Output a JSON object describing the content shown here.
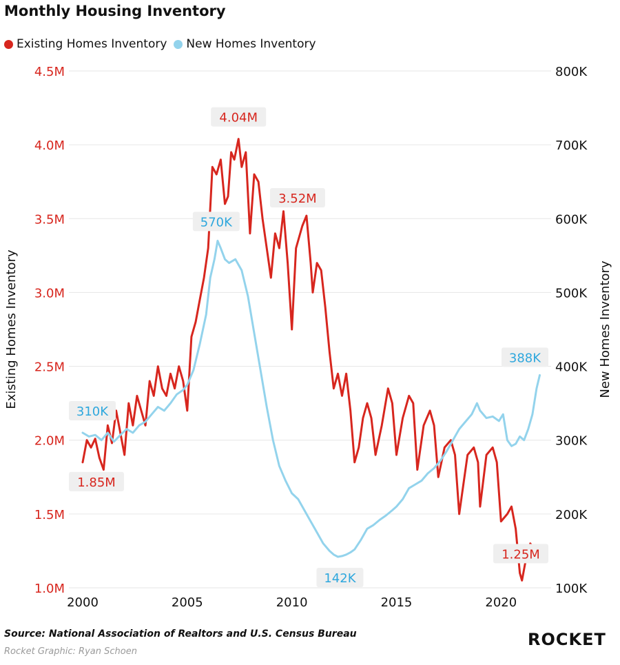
{
  "title": "Monthly Housing Inventory",
  "legend": {
    "existing_label": "Existing Homes Inventory",
    "new_label": "New Homes Inventory"
  },
  "colors": {
    "existing": "#d7261e",
    "new": "#93d3ec",
    "grid": "#e6e6e6",
    "callout_bg": "#efefef"
  },
  "source": "Source: National Association of Realtors and U.S. Census Bureau",
  "credit": "Rocket Graphic: Ryan Schoen",
  "logo": "ROCKET",
  "chart_data": {
    "type": "line",
    "title": "Monthly Housing Inventory",
    "x_ticks": [
      "2000",
      "2005",
      "2010",
      "2015",
      "2020"
    ],
    "x_tick_values": [
      2000,
      2005,
      2010,
      2015,
      2020
    ],
    "xlim": [
      2000,
      2021.9
    ],
    "left_axis": {
      "label": "Existing Homes Inventory",
      "ylim": [
        1.0,
        4.5
      ],
      "tick_values": [
        1.0,
        1.5,
        2.0,
        2.5,
        3.0,
        3.5,
        4.0,
        4.5
      ],
      "tick_labels": [
        "1.0M",
        "1.5M",
        "2.0M",
        "2.5M",
        "3.0M",
        "3.5M",
        "4.0M",
        "4.5M"
      ]
    },
    "right_axis": {
      "label": "New Homes Inventory",
      "ylim": [
        100,
        800
      ],
      "tick_values": [
        100,
        200,
        300,
        400,
        500,
        600,
        700,
        800
      ],
      "tick_labels": [
        "100K",
        "200K",
        "300K",
        "400K",
        "500K",
        "600K",
        "700K",
        "800K"
      ]
    },
    "grid": true,
    "legend_position": "top-left",
    "series": [
      {
        "name": "Existing Homes Inventory",
        "axis": "left",
        "x": [
          2000.0,
          2000.2,
          2000.4,
          2000.6,
          2000.8,
          2001.0,
          2001.2,
          2001.4,
          2001.6,
          2001.8,
          2002.0,
          2002.2,
          2002.4,
          2002.6,
          2002.8,
          2003.0,
          2003.2,
          2003.4,
          2003.6,
          2003.8,
          2004.0,
          2004.2,
          2004.4,
          2004.6,
          2004.8,
          2005.0,
          2005.2,
          2005.4,
          2005.6,
          2005.8,
          2006.0,
          2006.2,
          2006.4,
          2006.6,
          2006.8,
          2006.95,
          2007.1,
          2007.25,
          2007.45,
          2007.6,
          2007.8,
          2008.0,
          2008.2,
          2008.4,
          2008.6,
          2008.8,
          2009.0,
          2009.2,
          2009.4,
          2009.6,
          2009.8,
          2010.0,
          2010.2,
          2010.5,
          2010.7,
          2010.9,
          2011.0,
          2011.2,
          2011.4,
          2011.6,
          2011.8,
          2012.0,
          2012.2,
          2012.4,
          2012.6,
          2012.8,
          2013.0,
          2013.2,
          2013.4,
          2013.6,
          2013.8,
          2014.0,
          2014.3,
          2014.6,
          2014.8,
          2015.0,
          2015.3,
          2015.6,
          2015.8,
          2016.0,
          2016.3,
          2016.6,
          2016.8,
          2017.0,
          2017.3,
          2017.6,
          2017.8,
          2018.0,
          2018.4,
          2018.7,
          2018.9,
          2019.0,
          2019.3,
          2019.6,
          2019.8,
          2020.0,
          2020.3,
          2020.5,
          2020.7,
          2020.9,
          2021.0,
          2021.2,
          2021.4,
          2021.6,
          2021.8
        ],
        "values": [
          1.85,
          2.0,
          1.95,
          2.01,
          1.88,
          1.8,
          2.1,
          1.98,
          2.2,
          2.05,
          1.9,
          2.25,
          2.1,
          2.3,
          2.2,
          2.1,
          2.4,
          2.3,
          2.5,
          2.35,
          2.3,
          2.45,
          2.35,
          2.5,
          2.4,
          2.2,
          2.7,
          2.8,
          2.95,
          3.1,
          3.3,
          3.85,
          3.8,
          3.9,
          3.6,
          3.65,
          3.95,
          3.9,
          4.04,
          3.85,
          3.95,
          3.4,
          3.8,
          3.75,
          3.5,
          3.3,
          3.1,
          3.4,
          3.3,
          3.55,
          3.2,
          2.75,
          3.3,
          3.45,
          3.52,
          3.2,
          3.0,
          3.2,
          3.15,
          2.9,
          2.6,
          2.35,
          2.45,
          2.3,
          2.45,
          2.2,
          1.85,
          1.95,
          2.15,
          2.25,
          2.15,
          1.9,
          2.1,
          2.35,
          2.25,
          1.9,
          2.15,
          2.3,
          2.25,
          1.8,
          2.1,
          2.2,
          2.1,
          1.75,
          1.95,
          2.0,
          1.9,
          1.5,
          1.9,
          1.95,
          1.85,
          1.55,
          1.9,
          1.95,
          1.85,
          1.45,
          1.5,
          1.55,
          1.4,
          1.1,
          1.05,
          1.2,
          1.3,
          1.26,
          1.25
        ]
      },
      {
        "name": "New Homes Inventory",
        "axis": "right",
        "x": [
          2000.0,
          2000.3,
          2000.6,
          2000.9,
          2001.2,
          2001.5,
          2001.8,
          2002.1,
          2002.4,
          2002.7,
          2003.0,
          2003.3,
          2003.6,
          2003.9,
          2004.2,
          2004.5,
          2004.8,
          2005.0,
          2005.3,
          2005.6,
          2005.9,
          2006.1,
          2006.3,
          2006.45,
          2006.6,
          2006.8,
          2007.0,
          2007.3,
          2007.6,
          2007.9,
          2008.2,
          2008.5,
          2008.8,
          2009.1,
          2009.4,
          2009.7,
          2010.0,
          2010.3,
          2010.6,
          2010.9,
          2011.2,
          2011.5,
          2011.8,
          2012.0,
          2012.2,
          2012.4,
          2012.6,
          2012.8,
          2013.0,
          2013.3,
          2013.6,
          2013.9,
          2014.2,
          2014.5,
          2014.8,
          2015.0,
          2015.3,
          2015.6,
          2015.9,
          2016.2,
          2016.5,
          2016.8,
          2017.1,
          2017.4,
          2017.7,
          2018.0,
          2018.3,
          2018.6,
          2018.85,
          2019.0,
          2019.3,
          2019.6,
          2019.9,
          2020.1,
          2020.3,
          2020.5,
          2020.7,
          2020.9,
          2021.1,
          2021.3,
          2021.5,
          2021.7,
          2021.85
        ],
        "values": [
          310,
          305,
          307,
          300,
          310,
          298,
          307,
          315,
          310,
          320,
          325,
          335,
          345,
          340,
          350,
          362,
          368,
          375,
          395,
          430,
          470,
          520,
          545,
          570,
          560,
          545,
          540,
          545,
          530,
          495,
          445,
          395,
          345,
          300,
          265,
          245,
          228,
          220,
          205,
          190,
          175,
          160,
          150,
          145,
          142,
          143,
          145,
          148,
          152,
          165,
          180,
          185,
          192,
          198,
          205,
          210,
          220,
          235,
          240,
          245,
          255,
          262,
          272,
          285,
          300,
          315,
          325,
          335,
          350,
          340,
          330,
          332,
          326,
          335,
          300,
          292,
          295,
          305,
          300,
          315,
          335,
          370,
          388
        ]
      }
    ],
    "annotations": [
      {
        "text": "4.04M",
        "series": "Existing Homes Inventory",
        "x": 2007.45,
        "value": 4.04
      },
      {
        "text": "3.52M",
        "series": "Existing Homes Inventory",
        "x": 2010.7,
        "value": 3.52
      },
      {
        "text": "1.85M",
        "series": "Existing Homes Inventory",
        "x": 2000.0,
        "value": 1.85
      },
      {
        "text": "1.25M",
        "series": "Existing Homes Inventory",
        "x": 2021.8,
        "value": 1.25
      },
      {
        "text": "570K",
        "series": "New Homes Inventory",
        "x": 2006.45,
        "value": 570
      },
      {
        "text": "310K",
        "series": "New Homes Inventory",
        "x": 2000.0,
        "value": 310
      },
      {
        "text": "142K",
        "series": "New Homes Inventory",
        "x": 2012.2,
        "value": 142
      },
      {
        "text": "388K",
        "series": "New Homes Inventory",
        "x": 2021.85,
        "value": 388
      }
    ]
  }
}
